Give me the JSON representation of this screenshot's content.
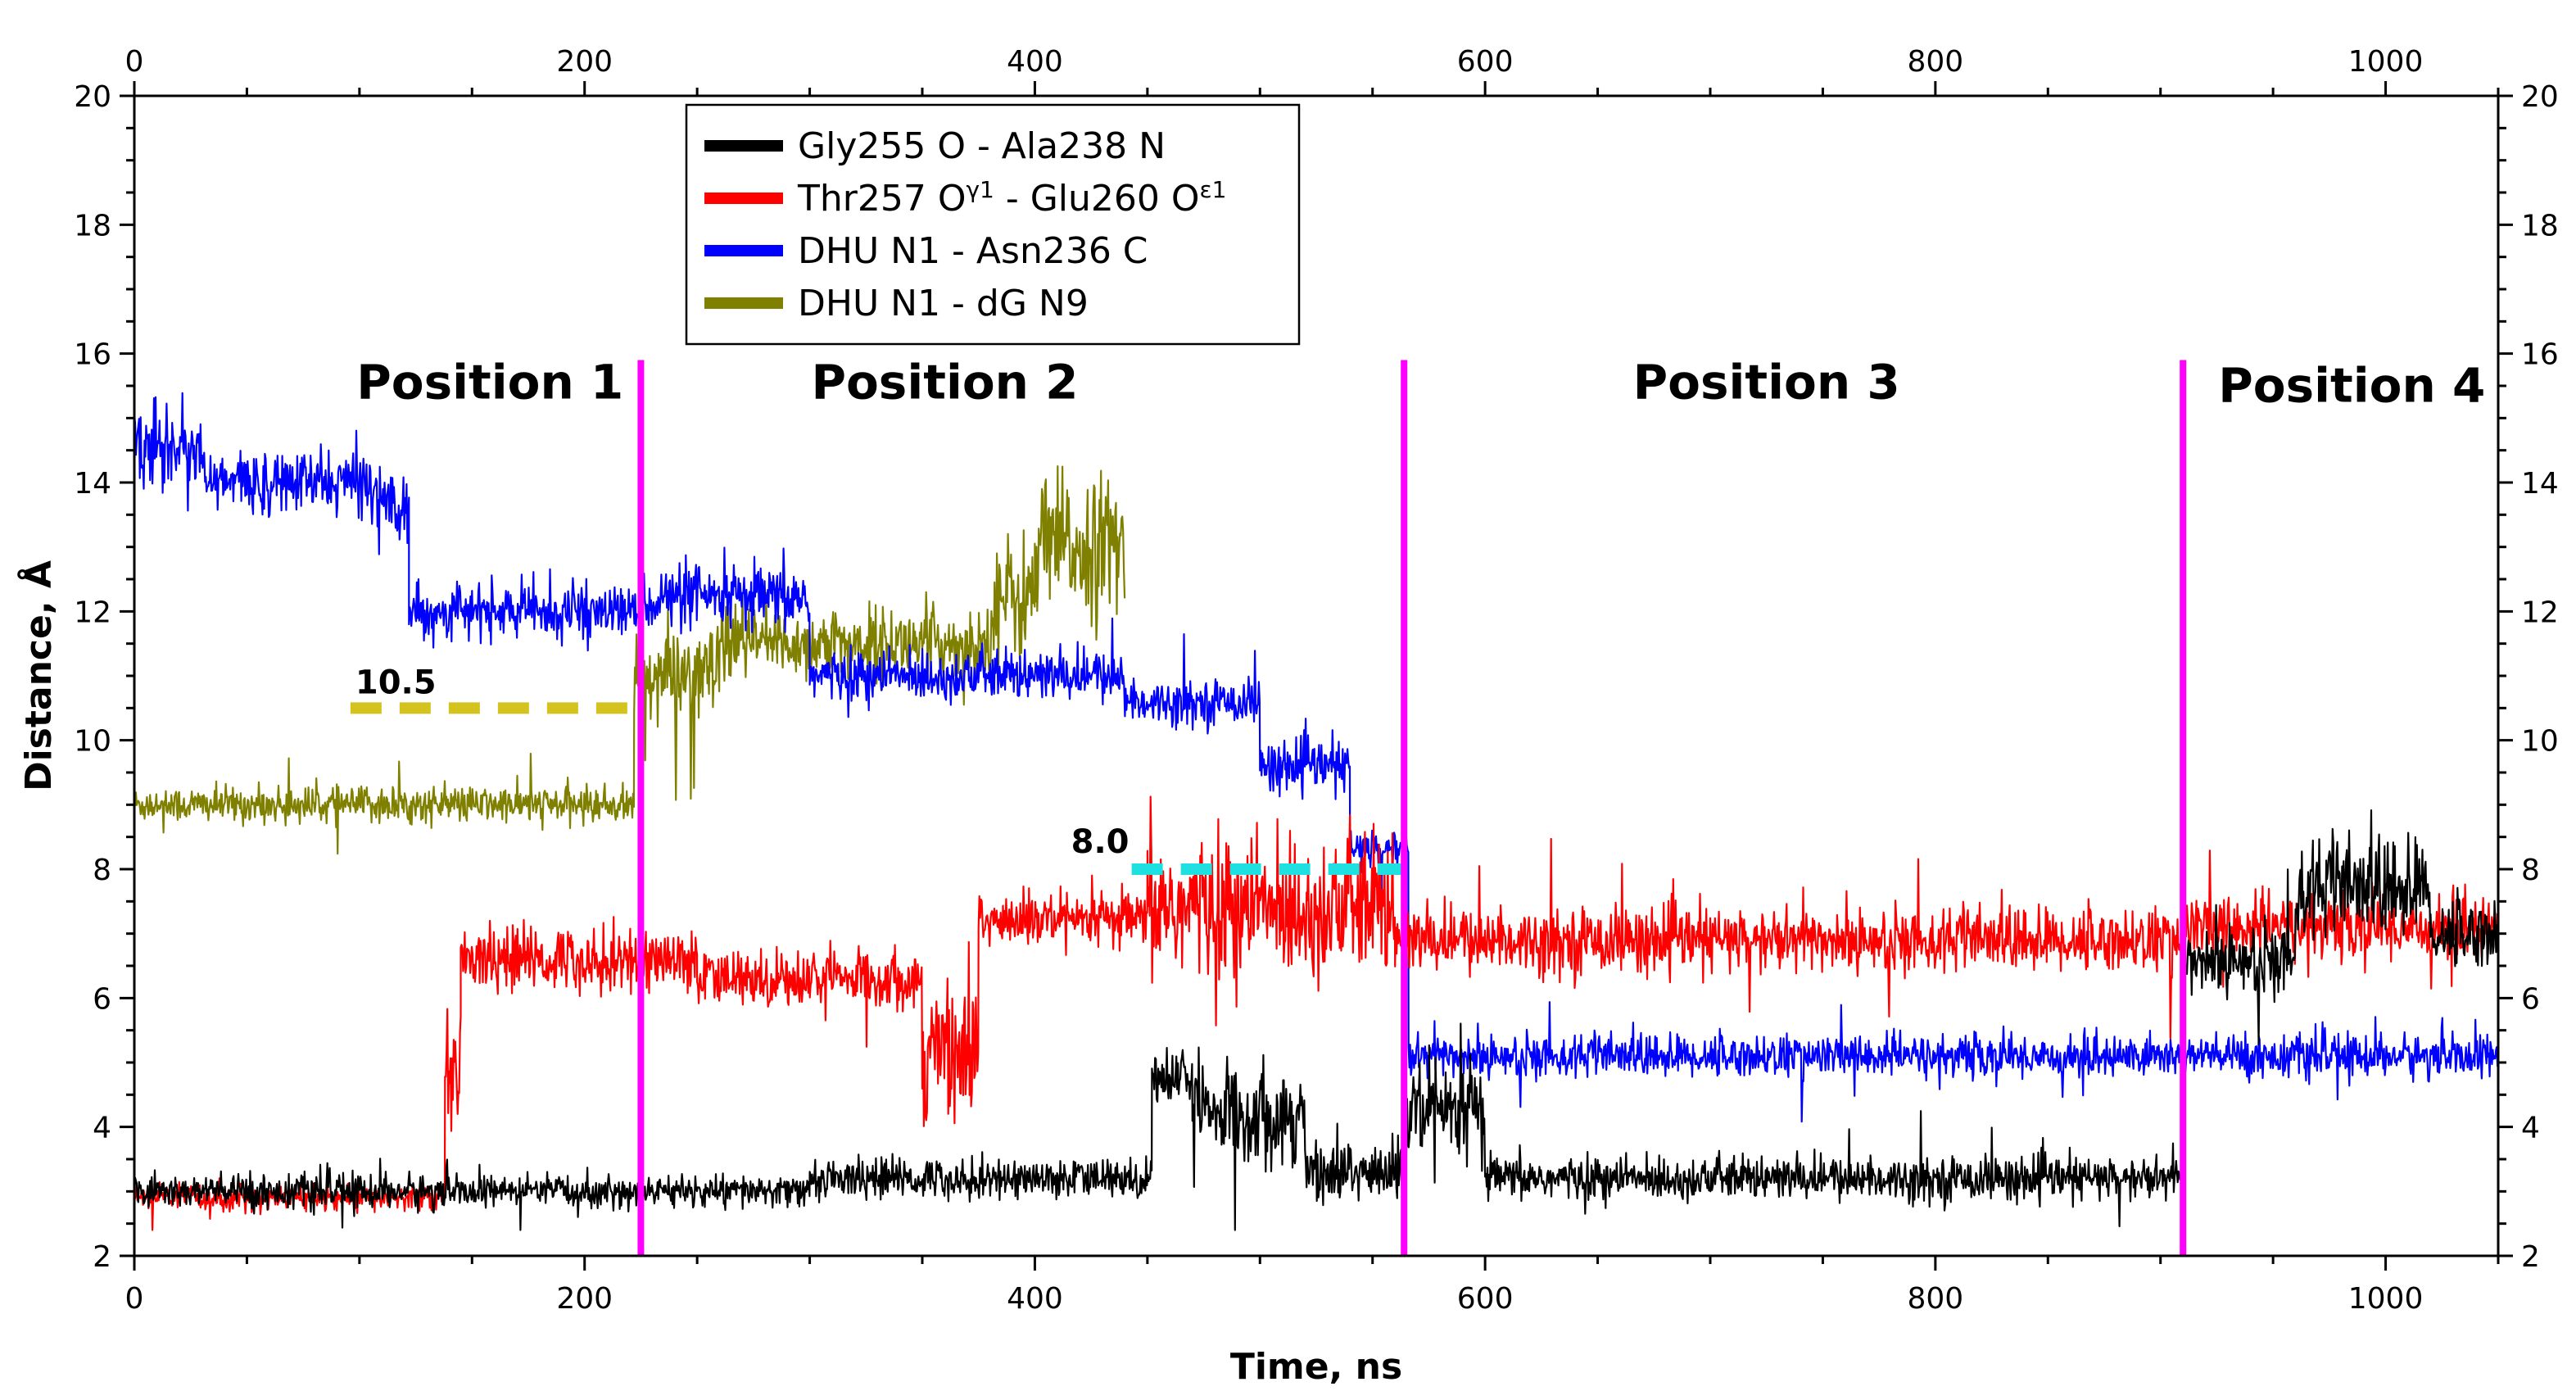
{
  "chart_data": {
    "type": "line",
    "title": "",
    "xlabel": "Time, ns",
    "ylabel": "Distance, Å",
    "xlim": [
      0,
      1050
    ],
    "ylim": [
      2,
      20
    ],
    "x_ticks": [
      0,
      200,
      400,
      600,
      800,
      1000
    ],
    "y_ticks": [
      2,
      4,
      6,
      8,
      10,
      12,
      14,
      16,
      18,
      20
    ],
    "x_tick_labels": [
      "0",
      "200",
      "400",
      "600",
      "800",
      "1000"
    ],
    "y_tick_labels": [
      "2",
      "4",
      "6",
      "8",
      "10",
      "12",
      "14",
      "16",
      "18",
      "20"
    ],
    "legend_placement": "top-center",
    "series": [
      {
        "name": "Gly255 O - Ala238 N",
        "legend_main": "Gly255 O - Ala238 N",
        "legend_sup1": "",
        "legend_mid": "",
        "legend_sup2": "",
        "color": "#000000",
        "noise": 0.35,
        "segments": [
          {
            "x0": 0,
            "x1": 140,
            "base": 3.0,
            "noise": 0.25
          },
          {
            "x0": 140,
            "x1": 300,
            "base": 3.0,
            "noise": 0.22
          },
          {
            "x0": 300,
            "x1": 452,
            "base": 3.2,
            "noise": 0.28
          },
          {
            "x0": 452,
            "x1": 470,
            "base": 4.8,
            "noise": 0.4
          },
          {
            "x0": 470,
            "x1": 520,
            "base": 4.2,
            "noise": 0.7
          },
          {
            "x0": 520,
            "x1": 565,
            "base": 3.3,
            "noise": 0.45
          },
          {
            "x0": 565,
            "x1": 600,
            "base": 4.2,
            "noise": 0.8
          },
          {
            "x0": 600,
            "x1": 910,
            "base": 3.2,
            "noise": 0.3
          },
          {
            "x0": 910,
            "x1": 960,
            "base": 6.6,
            "noise": 0.5
          },
          {
            "x0": 960,
            "x1": 1020,
            "base": 7.7,
            "noise": 0.7
          },
          {
            "x0": 1020,
            "x1": 1050,
            "base": 7.0,
            "noise": 0.5
          }
        ]
      },
      {
        "name": "Thr257 Oγ1 - Glu260 Oε1",
        "legend_main": "Thr257 O",
        "legend_sup1": "γ1",
        "legend_mid": " - Glu260 O",
        "legend_sup2": "ε1",
        "color": "#ff0000",
        "segments": [
          {
            "x0": 0,
            "x1": 138,
            "base": 2.9,
            "noise": 0.18
          },
          {
            "x0": 138,
            "x1": 145,
            "base": 5.0,
            "noise": 0.8
          },
          {
            "x0": 145,
            "x1": 250,
            "base": 6.6,
            "noise": 0.45
          },
          {
            "x0": 250,
            "x1": 350,
            "base": 6.3,
            "noise": 0.4
          },
          {
            "x0": 350,
            "x1": 375,
            "base": 5.2,
            "noise": 1.0
          },
          {
            "x0": 375,
            "x1": 450,
            "base": 7.2,
            "noise": 0.4
          },
          {
            "x0": 450,
            "x1": 560,
            "base": 7.4,
            "noise": 1.0
          },
          {
            "x0": 560,
            "x1": 910,
            "base": 6.9,
            "noise": 0.45
          },
          {
            "x0": 910,
            "x1": 1050,
            "base": 7.1,
            "noise": 0.45
          }
        ]
      },
      {
        "name": "DHU N1 - Asn236 C",
        "legend_main": "DHU N1 - Asn236 C",
        "legend_sup1": "",
        "legend_mid": "",
        "legend_sup2": "",
        "color": "#0000ff",
        "segments": [
          {
            "x0": 0,
            "x1": 30,
            "base": 14.6,
            "noise": 0.6
          },
          {
            "x0": 30,
            "x1": 108,
            "base": 14.0,
            "noise": 0.45
          },
          {
            "x0": 108,
            "x1": 122,
            "base": 13.7,
            "noise": 0.5
          },
          {
            "x0": 122,
            "x1": 225,
            "base": 12.0,
            "noise": 0.35
          },
          {
            "x0": 225,
            "x1": 300,
            "base": 12.2,
            "noise": 0.45
          },
          {
            "x0": 300,
            "x1": 440,
            "base": 11.0,
            "noise": 0.35
          },
          {
            "x0": 440,
            "x1": 500,
            "base": 10.6,
            "noise": 0.3
          },
          {
            "x0": 500,
            "x1": 540,
            "base": 9.6,
            "noise": 0.35
          },
          {
            "x0": 540,
            "x1": 566,
            "base": 8.3,
            "noise": 0.3
          },
          {
            "x0": 566,
            "x1": 1050,
            "base": 5.1,
            "noise": 0.3
          }
        ]
      },
      {
        "name": "DHU N1 - dG N9",
        "legend_main": "DHU N1 - dG N9",
        "legend_sup1": "",
        "legend_mid": "",
        "legend_sup2": "",
        "color": "#808000",
        "segments": [
          {
            "x0": 0,
            "x1": 222,
            "base": 9.0,
            "noise": 0.25
          },
          {
            "x0": 222,
            "x1": 260,
            "base": 11.0,
            "noise": 0.7
          },
          {
            "x0": 260,
            "x1": 380,
            "base": 11.5,
            "noise": 0.5
          },
          {
            "x0": 380,
            "x1": 400,
            "base": 12.2,
            "noise": 0.9
          },
          {
            "x0": 400,
            "x1": 440,
            "base": 13.0,
            "noise": 1.0
          }
        ]
      }
    ],
    "vertical_lines": {
      "color": "#ff00ff",
      "x": [
        225,
        564,
        910
      ]
    },
    "positions": [
      {
        "label": "Position 1",
        "x": 158,
        "y": 15.3
      },
      {
        "label": "Position 2",
        "x": 360,
        "y": 15.3
      },
      {
        "label": "Position 3",
        "x": 725,
        "y": 15.3
      },
      {
        "label": "Position 4",
        "x": 985,
        "y": 15.25
      }
    ],
    "reference_lines": [
      {
        "label": "10.5",
        "value": 10.5,
        "x0": 96,
        "x1": 222,
        "color": "#d4c21f"
      },
      {
        "label": "8.0",
        "value": 8.0,
        "x0": 443,
        "x1": 565,
        "color": "#1fe0e0"
      }
    ]
  }
}
